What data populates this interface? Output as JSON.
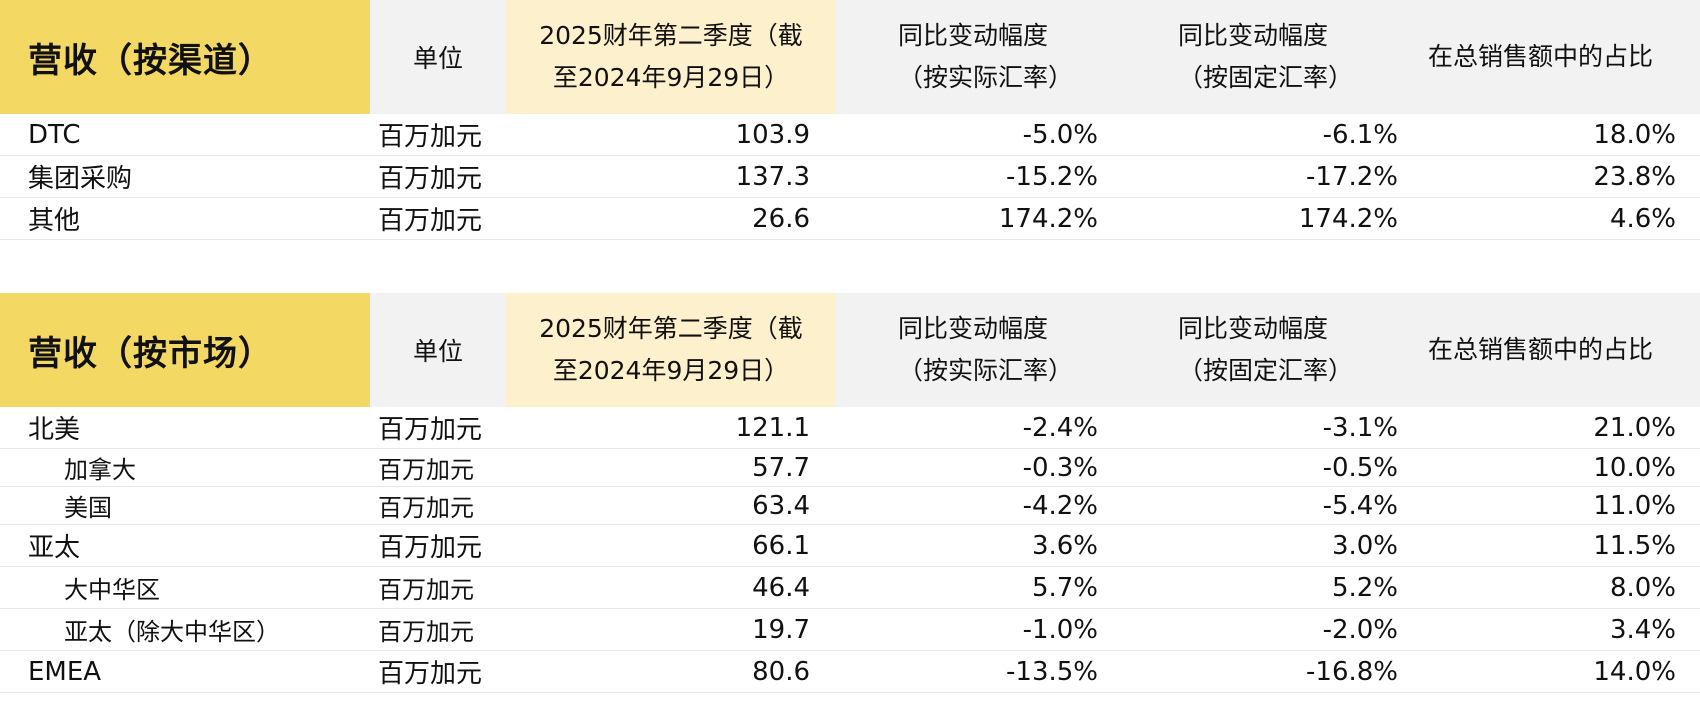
{
  "headers": {
    "unit": "单位",
    "quarter": "2025财年第二季度（截至2024年9月29日）",
    "yoy_actual": [
      "同比变动幅度",
      "（按实际汇率）"
    ],
    "yoy_constant": [
      "同比变动幅度",
      "（按固定汇率）"
    ],
    "share": "在总销售额中的占比"
  },
  "channel": {
    "title": "营收（按渠道）",
    "rows": [
      {
        "label": "DTC",
        "unit": "百万加元",
        "value": "103.9",
        "yoy_actual": "-5.0%",
        "yoy_constant": "-6.1%",
        "share": "18.0%"
      },
      {
        "label": "集团采购",
        "unit": "百万加元",
        "value": "137.3",
        "yoy_actual": "-15.2%",
        "yoy_constant": "-17.2%",
        "share": "23.8%"
      },
      {
        "label": "其他",
        "unit": "百万加元",
        "value": "26.6",
        "yoy_actual": "174.2%",
        "yoy_constant": "174.2%",
        "share": "4.6%"
      }
    ]
  },
  "market": {
    "title": "营收（按市场）",
    "rows": [
      {
        "label": "北美",
        "unit": "百万加元",
        "value": "121.1",
        "yoy_actual": "-2.4%",
        "yoy_constant": "-3.1%",
        "share": "21.0%"
      },
      {
        "label": "加拿大",
        "unit": "百万加元",
        "value": "57.7",
        "yoy_actual": "-0.3%",
        "yoy_constant": "-0.5%",
        "share": "10.0%"
      },
      {
        "label": "美国",
        "unit": "百万加元",
        "value": "63.4",
        "yoy_actual": "-4.2%",
        "yoy_constant": "-5.4%",
        "share": "11.0%"
      },
      {
        "label": "亚太",
        "unit": "百万加元",
        "value": "66.1",
        "yoy_actual": "3.6%",
        "yoy_constant": "3.0%",
        "share": "11.5%"
      },
      {
        "label": "大中华区",
        "unit": "百万加元",
        "value": "46.4",
        "yoy_actual": "5.7%",
        "yoy_constant": "5.2%",
        "share": "8.0%"
      },
      {
        "label": "亚太（除大中华区）",
        "unit": "百万加元",
        "value": "19.7",
        "yoy_actual": "-1.0%",
        "yoy_constant": "-2.0%",
        "share": "3.4%"
      },
      {
        "label": "EMEA",
        "unit": "百万加元",
        "value": "80.6",
        "yoy_actual": "-13.5%",
        "yoy_constant": "-16.8%",
        "share": "14.0%"
      }
    ]
  }
}
